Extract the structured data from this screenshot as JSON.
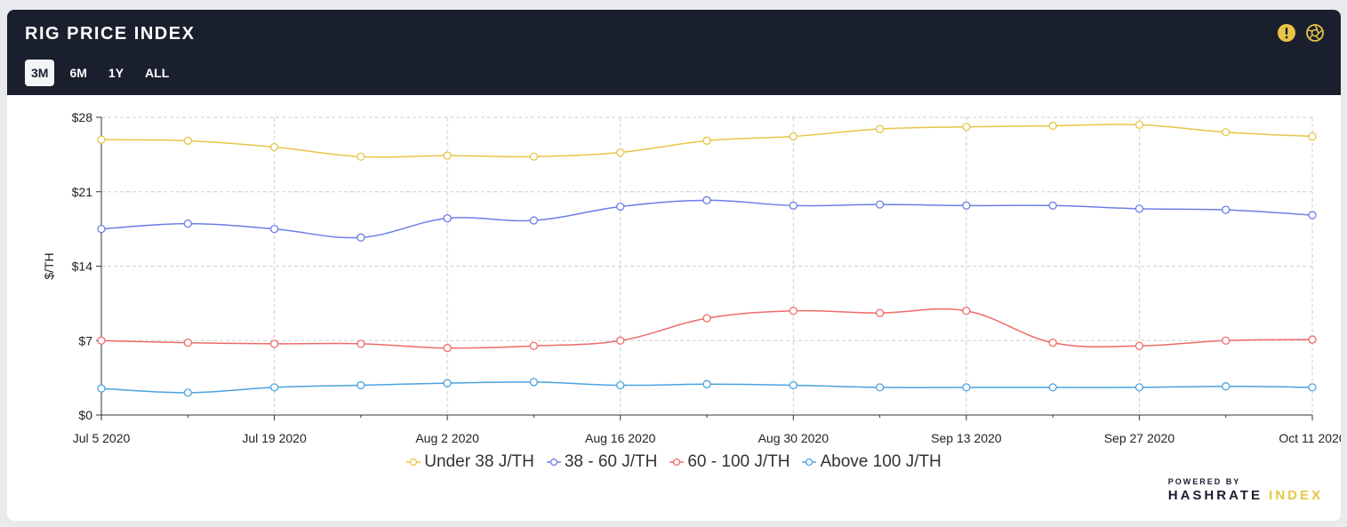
{
  "header": {
    "title": "RIG PRICE INDEX",
    "tabs": [
      "3M",
      "6M",
      "1Y",
      "ALL"
    ],
    "active_tab": "3M",
    "icons": [
      "alert-icon",
      "aperture-icon"
    ]
  },
  "colors": {
    "under38": "#e8c547",
    "38to60": "#6b7de8",
    "60to100": "#ee6a6a",
    "above100": "#4aa3df"
  },
  "chart_data": {
    "type": "line",
    "title": "RIG PRICE INDEX",
    "xlabel": "",
    "ylabel": "$/TH",
    "ylim": [
      0,
      28
    ],
    "yticks": [
      0,
      7,
      14,
      21,
      28
    ],
    "ytick_labels": [
      "$0",
      "$7",
      "$14",
      "$21",
      "$28"
    ],
    "x": [
      "Jul 5 2020",
      "Jul 12 2020",
      "Jul 19 2020",
      "Jul 26 2020",
      "Aug 2 2020",
      "Aug 9 2020",
      "Aug 16 2020",
      "Aug 23 2020",
      "Aug 30 2020",
      "Sep 6 2020",
      "Sep 13 2020",
      "Sep 20 2020",
      "Sep 27 2020",
      "Oct 4 2020",
      "Oct 11 2020"
    ],
    "xtick_labels": [
      "Jul 5 2020",
      "Jul 19 2020",
      "Aug 2 2020",
      "Aug 16 2020",
      "Aug 30 2020",
      "Sep 13 2020",
      "Sep 27 2020",
      "Oct 11 2020"
    ],
    "grid": true,
    "legend": "bottom-center",
    "series": [
      {
        "name": "Under 38 J/TH",
        "color_key": "under38",
        "values": [
          25.9,
          25.8,
          25.2,
          24.3,
          24.4,
          24.3,
          24.7,
          25.8,
          26.2,
          26.9,
          27.1,
          27.2,
          27.3,
          26.6,
          26.2
        ]
      },
      {
        "name": "38 - 60 J/TH",
        "color_key": "38to60",
        "values": [
          17.5,
          18.0,
          17.5,
          16.7,
          18.5,
          18.3,
          19.6,
          20.2,
          19.7,
          19.8,
          19.7,
          19.7,
          19.4,
          19.3,
          18.8
        ]
      },
      {
        "name": "60 - 100 J/TH",
        "color_key": "60to100",
        "values": [
          7.0,
          6.8,
          6.7,
          6.7,
          6.3,
          6.5,
          7.0,
          9.1,
          9.8,
          9.6,
          9.8,
          6.8,
          6.5,
          7.0,
          7.1
        ]
      },
      {
        "name": "Above 100 J/TH",
        "color_key": "above100",
        "values": [
          2.5,
          2.1,
          2.6,
          2.8,
          3.0,
          3.1,
          2.8,
          2.9,
          2.8,
          2.6,
          2.6,
          2.6,
          2.6,
          2.7,
          2.6
        ]
      }
    ]
  },
  "footer": {
    "powered_by": "POWERED BY",
    "brand_part1": "HASHRATE",
    "brand_part2": "INDEX"
  }
}
